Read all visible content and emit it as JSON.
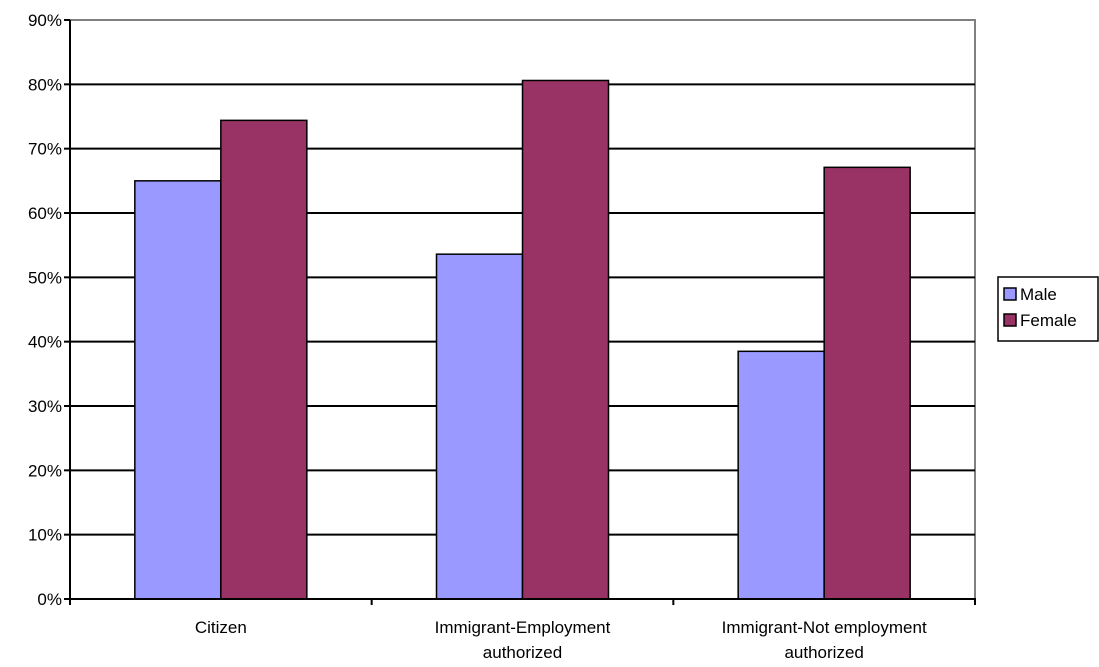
{
  "chart_data": {
    "type": "bar",
    "title": "",
    "xlabel": "",
    "ylabel": "",
    "categories": [
      [
        "Citizen"
      ],
      [
        "Immigrant-Employment",
        "authorized"
      ],
      [
        "Immigrant-Not employment",
        "authorized"
      ]
    ],
    "series": [
      {
        "name": "Male",
        "values": [
          0.65,
          0.536,
          0.385
        ],
        "color": "#9999ff"
      },
      {
        "name": "Female",
        "values": [
          0.744,
          0.806,
          0.671
        ],
        "color": "#993366"
      }
    ],
    "ylim": [
      0,
      0.9
    ],
    "yticks": [
      0,
      0.1,
      0.2,
      0.3,
      0.4,
      0.5,
      0.6,
      0.7,
      0.8,
      0.9
    ],
    "ytick_labels": [
      "0%",
      "10%",
      "20%",
      "30%",
      "40%",
      "50%",
      "60%",
      "70%",
      "80%",
      "90%"
    ],
    "grid": true,
    "legend": "right"
  }
}
